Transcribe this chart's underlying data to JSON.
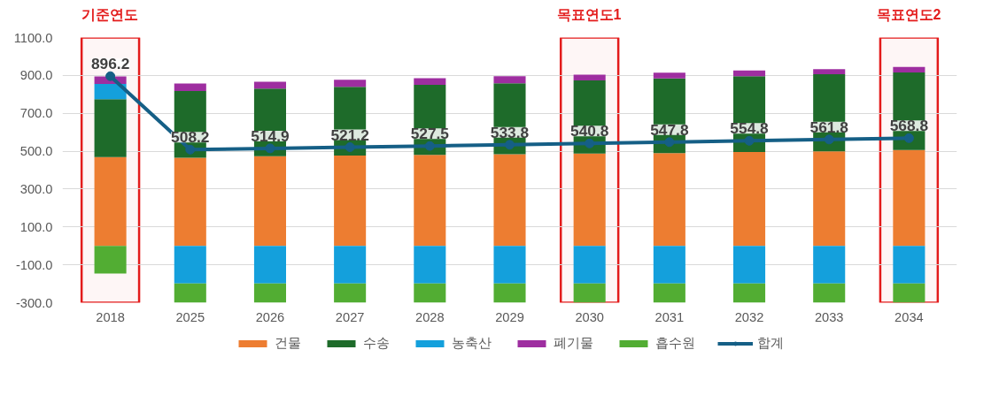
{
  "chart_data": {
    "type": "bar",
    "stacked": true,
    "categories": [
      "2018",
      "2025",
      "2026",
      "2027",
      "2028",
      "2029",
      "2030",
      "2031",
      "2032",
      "2033",
      "2034"
    ],
    "series": [
      {
        "name": "건물",
        "color": "#ed7d31",
        "values": [
          469,
          465,
          474,
          477,
          480,
          484,
          487,
          490,
          496,
          499,
          506
        ]
      },
      {
        "name": "수송",
        "color": "#1e6b2a",
        "values": [
          305,
          353,
          356,
          363,
          370,
          374,
          387,
          394,
          400,
          407,
          410
        ]
      },
      {
        "name": "농축산",
        "color": "#14a0dc",
        "values": [
          81,
          -198,
          -198,
          -198,
          -198,
          -198,
          -198,
          -198,
          -198,
          -198,
          -198
        ]
      },
      {
        "name": "폐기물",
        "color": "#9e2ea0",
        "values": [
          40,
          39,
          37,
          37,
          35,
          38,
          30,
          31,
          30,
          27,
          29
        ]
      },
      {
        "name": "흡수원",
        "color": "#52ad33",
        "values": [
          -146,
          -102,
          -102,
          -102,
          -102,
          -102,
          -102,
          -102,
          -102,
          -102,
          -102
        ]
      },
      {
        "name": "합계",
        "type": "line",
        "color": "#155f86",
        "values": [
          896.2,
          508.2,
          514.9,
          521.2,
          527.5,
          533.8,
          540.8,
          547.8,
          554.8,
          561.8,
          568.8
        ],
        "value_labels": [
          "896.2",
          "508.2",
          "514.9",
          "521.2",
          "527.5",
          "533.8",
          "540.8",
          "547.8",
          "554.8",
          "561.8",
          "568.8"
        ]
      }
    ],
    "ylim": [
      -300,
      1100
    ],
    "yticks": [
      {
        "value": -300,
        "label": "-300.0"
      },
      {
        "value": -100,
        "label": "-100.0"
      },
      {
        "value": 100,
        "label": "100.0"
      },
      {
        "value": 300,
        "label": "300.0"
      },
      {
        "value": 500,
        "label": "500.0"
      },
      {
        "value": 700,
        "label": "700.0"
      },
      {
        "value": 900,
        "label": "900.0"
      },
      {
        "value": 1100,
        "label": "1100.0"
      }
    ],
    "bands": [
      {
        "axis": "x",
        "from": "2018",
        "to": "2018",
        "label": "기준연도",
        "color": "#e31b1b"
      },
      {
        "axis": "x",
        "from": "2030",
        "to": "2030",
        "label": "목표연도1",
        "color": "#e31b1b"
      },
      {
        "axis": "x",
        "from": "2034",
        "to": "2034",
        "label": "목표연도2",
        "color": "#e31b1b"
      }
    ],
    "grid": "y",
    "legend": "bottom",
    "marker": "circle"
  }
}
